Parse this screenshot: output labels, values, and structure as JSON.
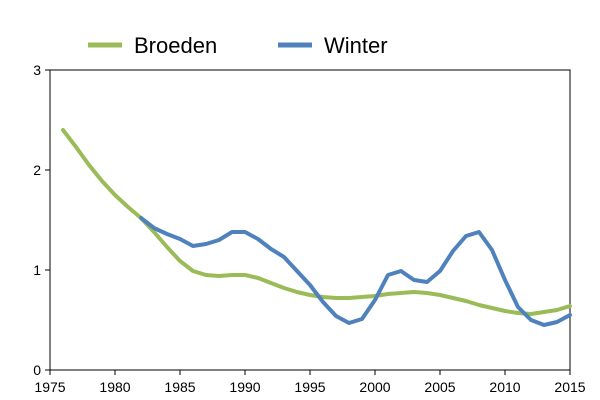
{
  "chart_data": {
    "type": "line",
    "xlim": [
      1975,
      2015
    ],
    "ylim": [
      0,
      3
    ],
    "x_ticks": [
      1975,
      1980,
      1985,
      1990,
      1995,
      2000,
      2005,
      2010,
      2015
    ],
    "y_ticks": [
      0,
      1,
      2,
      3
    ],
    "grid": false,
    "legend_position": "top",
    "series": [
      {
        "name": "Broeden",
        "color": "#9bbb59",
        "points": [
          [
            1976,
            2.4
          ],
          [
            1977,
            2.23
          ],
          [
            1978,
            2.05
          ],
          [
            1979,
            1.89
          ],
          [
            1980,
            1.75
          ],
          [
            1981,
            1.63
          ],
          [
            1982,
            1.52
          ],
          [
            1983,
            1.38
          ],
          [
            1984,
            1.23
          ],
          [
            1985,
            1.09
          ],
          [
            1986,
            0.99
          ],
          [
            1987,
            0.95
          ],
          [
            1988,
            0.94
          ],
          [
            1989,
            0.95
          ],
          [
            1990,
            0.95
          ],
          [
            1991,
            0.92
          ],
          [
            1992,
            0.87
          ],
          [
            1993,
            0.82
          ],
          [
            1994,
            0.78
          ],
          [
            1995,
            0.75
          ],
          [
            1996,
            0.73
          ],
          [
            1997,
            0.72
          ],
          [
            1998,
            0.72
          ],
          [
            1999,
            0.73
          ],
          [
            2000,
            0.74
          ],
          [
            2001,
            0.76
          ],
          [
            2002,
            0.77
          ],
          [
            2003,
            0.78
          ],
          [
            2004,
            0.77
          ],
          [
            2005,
            0.75
          ],
          [
            2006,
            0.72
          ],
          [
            2007,
            0.69
          ],
          [
            2008,
            0.65
          ],
          [
            2009,
            0.62
          ],
          [
            2010,
            0.59
          ],
          [
            2011,
            0.57
          ],
          [
            2012,
            0.56
          ],
          [
            2013,
            0.58
          ],
          [
            2014,
            0.6
          ],
          [
            2015,
            0.64
          ]
        ]
      },
      {
        "name": "Winter",
        "color": "#4f81bd",
        "points": [
          [
            1982,
            1.52
          ],
          [
            1983,
            1.42
          ],
          [
            1984,
            1.36
          ],
          [
            1985,
            1.31
          ],
          [
            1986,
            1.24
          ],
          [
            1987,
            1.26
          ],
          [
            1988,
            1.3
          ],
          [
            1989,
            1.38
          ],
          [
            1990,
            1.38
          ],
          [
            1991,
            1.31
          ],
          [
            1992,
            1.21
          ],
          [
            1993,
            1.13
          ],
          [
            1994,
            0.99
          ],
          [
            1995,
            0.85
          ],
          [
            1996,
            0.68
          ],
          [
            1997,
            0.54
          ],
          [
            1998,
            0.47
          ],
          [
            1999,
            0.51
          ],
          [
            2000,
            0.7
          ],
          [
            2001,
            0.95
          ],
          [
            2002,
            0.99
          ],
          [
            2003,
            0.9
          ],
          [
            2004,
            0.88
          ],
          [
            2005,
            0.99
          ],
          [
            2006,
            1.19
          ],
          [
            2007,
            1.34
          ],
          [
            2008,
            1.38
          ],
          [
            2009,
            1.2
          ],
          [
            2010,
            0.9
          ],
          [
            2011,
            0.63
          ],
          [
            2012,
            0.5
          ],
          [
            2013,
            0.45
          ],
          [
            2014,
            0.48
          ],
          [
            2015,
            0.55
          ]
        ]
      }
    ]
  }
}
